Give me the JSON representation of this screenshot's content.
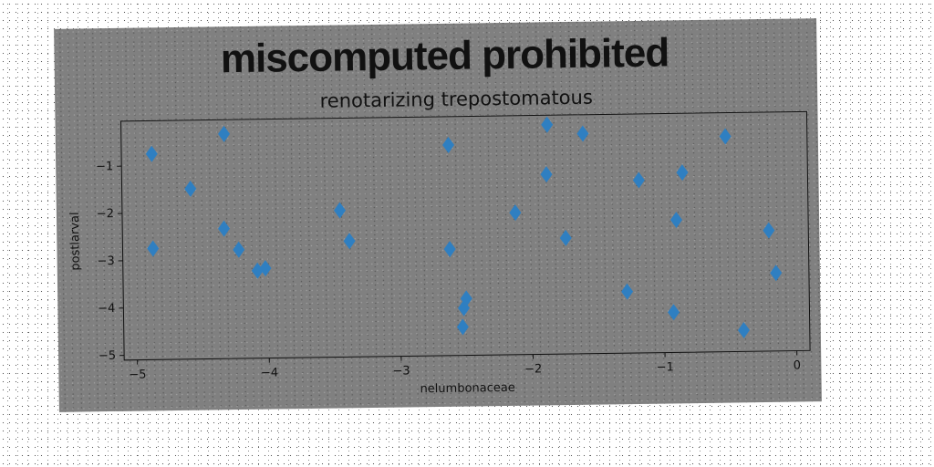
{
  "chart_data": {
    "type": "scatter",
    "title": "miscomputed prohibited",
    "subtitle": "renotarizing trepostomatous",
    "xlabel": "nelumbonaceae",
    "ylabel": "postlarval",
    "xlim": [
      -5.1,
      0.1
    ],
    "ylim": [
      -5.1,
      -0.05
    ],
    "xticks": [
      -5,
      -4,
      -3,
      -2,
      -1,
      0
    ],
    "yticks": [
      -5,
      -4,
      -3,
      -2,
      -1
    ],
    "marker": "diamond",
    "marker_color": "#2f7fc1",
    "grid": false,
    "series": [
      {
        "x": [
          -4.87,
          -4.87,
          -4.58,
          -4.33,
          -4.32,
          -4.22,
          -4.08,
          -4.02,
          -3.45,
          -3.38,
          -2.62,
          -2.62,
          -2.53,
          -2.52,
          -2.5,
          -2.12,
          -1.88,
          -1.87,
          -1.74,
          -1.6,
          -1.28,
          -1.18,
          -0.93,
          -0.9,
          -0.85,
          -0.52,
          -0.4,
          -0.2,
          -0.15
        ],
        "y": [
          -0.75,
          -2.75,
          -1.5,
          -2.35,
          -0.35,
          -2.8,
          -3.25,
          -3.2,
          -2.0,
          -2.65,
          -0.65,
          -2.85,
          -4.5,
          -4.1,
          -3.9,
          -2.1,
          -1.3,
          -0.25,
          -2.65,
          -0.45,
          -3.8,
          -1.45,
          -4.25,
          -2.3,
          -1.3,
          -0.55,
          -4.65,
          -2.55,
          -3.45
        ]
      }
    ]
  }
}
